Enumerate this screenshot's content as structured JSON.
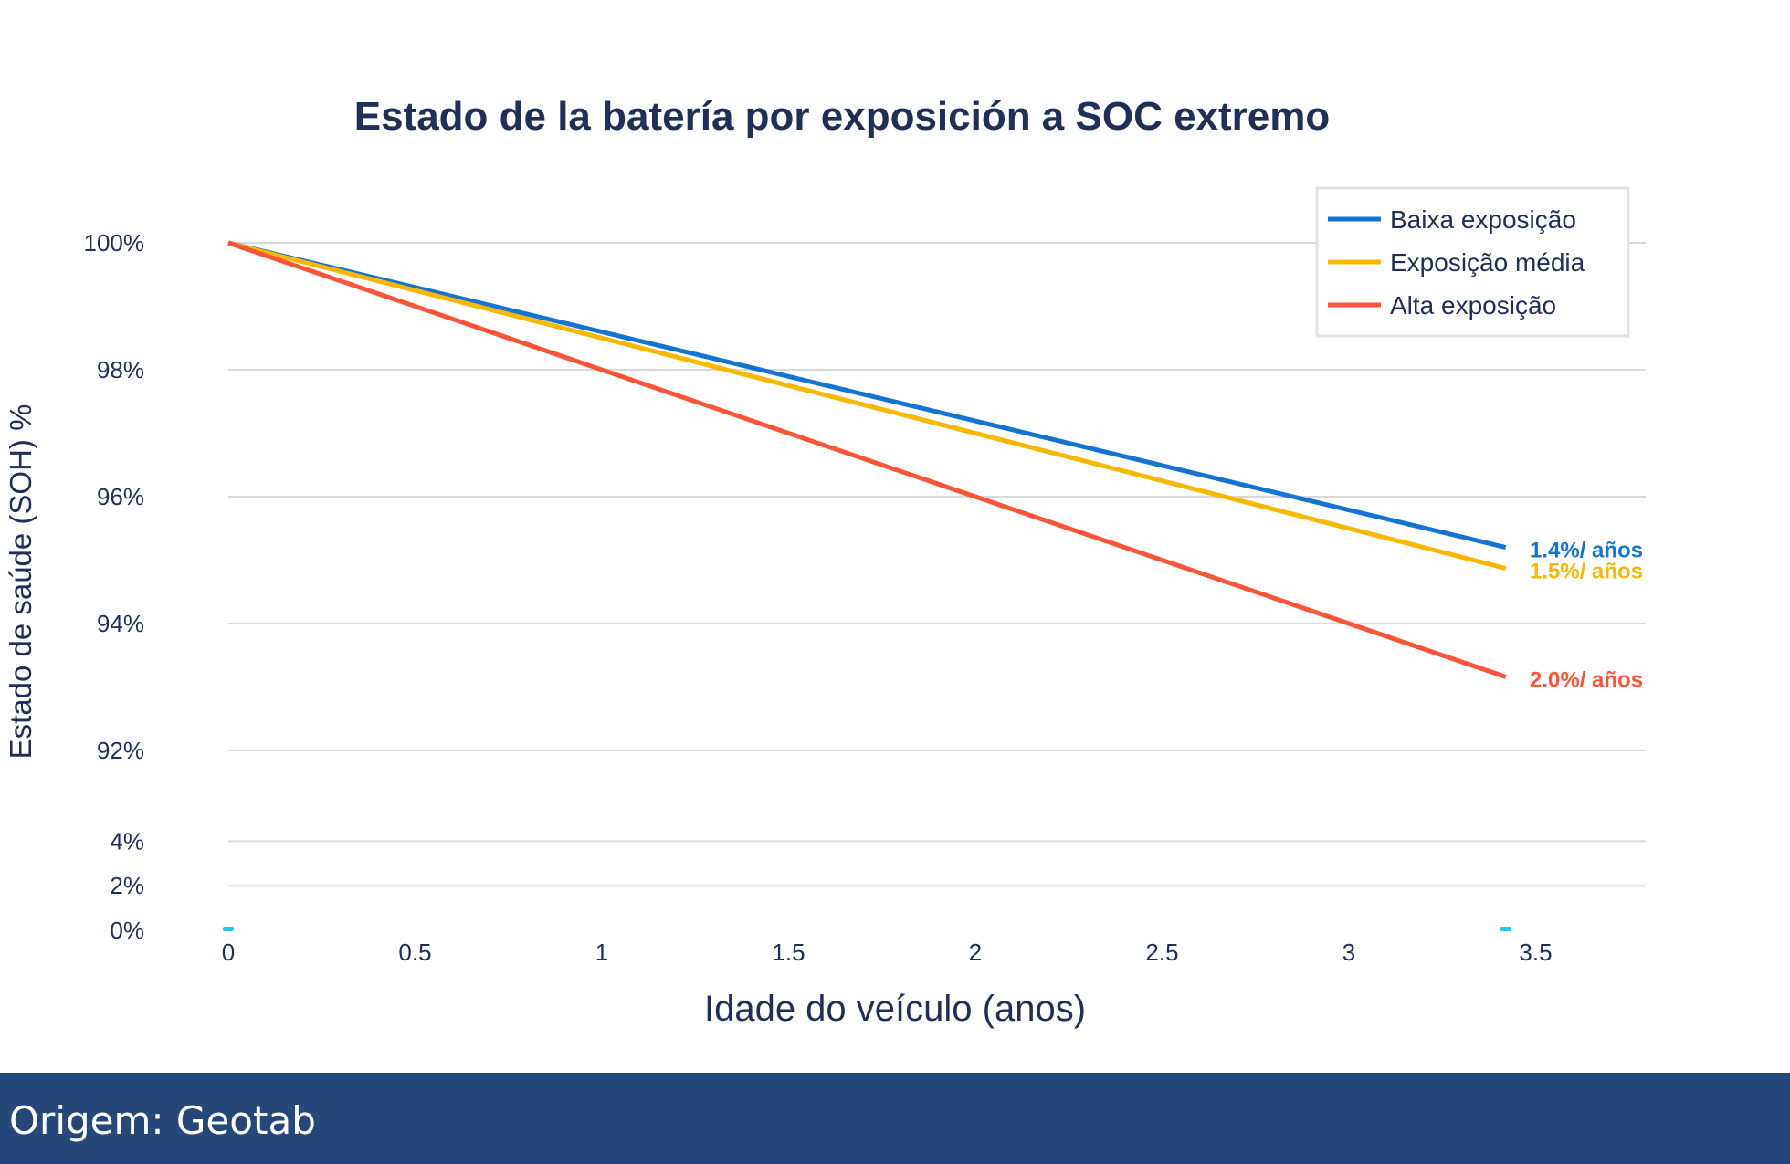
{
  "chart_data": {
    "type": "line",
    "title": "Estado de la batería por exposición a SOC extremo",
    "xlabel": "Idade do veículo (anos)",
    "ylabel": "Estado de saúde (SOH) %",
    "x_ticks": [
      "0",
      "0.5",
      "1",
      "1.5",
      "2",
      "2.5",
      "3",
      "3.5"
    ],
    "x_tick_values": [
      0,
      0.5,
      1,
      1.5,
      2,
      2.5,
      3,
      3.5
    ],
    "y_ticks_upper": [
      "100%",
      "98%",
      "96%",
      "94%",
      "92%"
    ],
    "y_tick_values_upper": [
      100,
      98,
      96,
      94,
      92
    ],
    "y_ticks_lower": [
      "4%",
      "2%",
      "0%"
    ],
    "y_tick_values_lower": [
      4,
      2,
      0
    ],
    "xlim": [
      0,
      3.8
    ],
    "ylim_upper": [
      91,
      101
    ],
    "axis_break": true,
    "grid": true,
    "legend_placement": "top-right",
    "series": [
      {
        "name": "Baixa exposição",
        "color": "#1474d4",
        "x": [
          0,
          3.42
        ],
        "y": [
          100,
          95.2
        ],
        "annotation": "1.4%/ años"
      },
      {
        "name": "Exposição média",
        "color": "#f9b800",
        "x": [
          0,
          3.42
        ],
        "y": [
          100,
          94.87
        ],
        "annotation": "1.5%/ años"
      },
      {
        "name": "Alta exposição",
        "color": "#fb5437",
        "x": [
          0,
          3.42
        ],
        "y": [
          100,
          93.16
        ],
        "annotation": "2.0%/ años"
      }
    ]
  },
  "footer": {
    "source": "Origem: Geotab"
  },
  "colors": {
    "text": "#1f2f57",
    "grid": "#d9d9d9",
    "footer_bg": "#26477a",
    "marker": "#22c8f0"
  }
}
